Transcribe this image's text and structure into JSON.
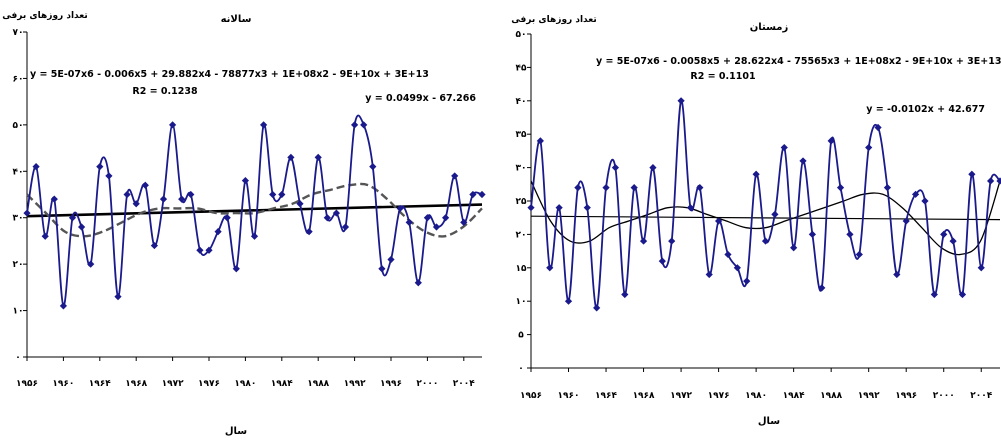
{
  "chart_data": [
    {
      "type": "line",
      "title": "سالانه",
      "ylabel": "تعداد روزهای برفی",
      "xlabel": "سال",
      "ylim": [
        0,
        70
      ],
      "xlim": [
        1956,
        2006
      ],
      "yticks": [
        0,
        10,
        20,
        30,
        40,
        50,
        60,
        70
      ],
      "ytick_labels": [
        "۰",
        "۱۰",
        "۲۰",
        "۳۰",
        "۴۰",
        "۵۰",
        "۶۰",
        "۷۰"
      ],
      "xticks": [
        1956,
        1960,
        1964,
        1968,
        1972,
        1976,
        1980,
        1984,
        1988,
        1992,
        1996,
        2000,
        2004
      ],
      "xtick_labels": [
        "۱۹۵۶",
        "۱۹۶۰",
        "۱۹۶۴",
        "۱۹۶۸",
        "۱۹۷۲",
        "۱۹۷۶",
        "۱۹۸۰",
        "۱۹۸۴",
        "۱۹۸۸",
        "۱۹۹۲",
        "۱۹۹۶",
        "۲۰۰۰",
        "۲۰۰۴"
      ],
      "grid": false,
      "series": [
        {
          "x": [
            1956,
            1957,
            1958,
            1959,
            1960,
            1961,
            1962,
            1963,
            1964,
            1965,
            1966,
            1967,
            1968,
            1969,
            1970,
            1971,
            1972,
            1973,
            1974,
            1975,
            1976,
            1977,
            1978,
            1979,
            1980,
            1981,
            1982,
            1983,
            1984,
            1985,
            1986,
            1987,
            1988,
            1989,
            1990,
            1991,
            1992,
            1993,
            1994,
            1995,
            1996,
            1997,
            1998,
            1999,
            2000,
            2001,
            2002,
            2003,
            2004,
            2005,
            2006
          ],
          "y": [
            31,
            41,
            26,
            34,
            11,
            30,
            28,
            20,
            41,
            39,
            13,
            35,
            33,
            37,
            24,
            34,
            50,
            34,
            35,
            23,
            23,
            27,
            30,
            19,
            38,
            26,
            50,
            35,
            35,
            43,
            33,
            27,
            43,
            30,
            31,
            28,
            50,
            50,
            41,
            19,
            21,
            32,
            29,
            16,
            30,
            28,
            30,
            39,
            29,
            35,
            35
          ]
        }
      ],
      "trendlines": [
        {
          "type": "linear",
          "equation": "y = 0.0499x - 67.266",
          "style": "solid",
          "color": "#000000"
        },
        {
          "type": "polynomial",
          "equation": "y = 5E-07x6 - 0.006x5 + 29.882x4 - 78877x3 + 1E+08x2 - 9E+10x + 3E+13",
          "r2": "R2 = 0.1238",
          "style": "dashed",
          "color": "#555555",
          "y": [
            35,
            31,
            27,
            26,
            27,
            29,
            31,
            32,
            32,
            32,
            31,
            31,
            31,
            32,
            33,
            35,
            36,
            37,
            37,
            34,
            30,
            27,
            26,
            28,
            32
          ]
        }
      ],
      "colors": {
        "series": "#1a1a8c",
        "markers": "#1a1a8c"
      }
    },
    {
      "type": "line",
      "title": "زمستان",
      "ylabel": "تعداد روزهای برفی",
      "xlabel": "سال",
      "ylim": [
        0,
        50
      ],
      "xlim": [
        1956,
        2006
      ],
      "yticks": [
        0,
        5,
        10,
        15,
        20,
        25,
        30,
        35,
        40,
        45,
        50
      ],
      "ytick_labels": [
        "۰",
        "۵",
        "۱۰",
        "۱۵",
        "۲۰",
        "۲۵",
        "۳۰",
        "۳۵",
        "۴۰",
        "۴۵",
        "۵۰"
      ],
      "xticks": [
        1956,
        1960,
        1964,
        1968,
        1972,
        1976,
        1980,
        1984,
        1988,
        1992,
        1996,
        2000,
        2004
      ],
      "xtick_labels": [
        "۱۹۵۶",
        "۱۹۶۰",
        "۱۹۶۴",
        "۱۹۶۸",
        "۱۹۷۲",
        "۱۹۷۶",
        "۱۹۸۰",
        "۱۹۸۴",
        "۱۹۸۸",
        "۱۹۹۲",
        "۱۹۹۶",
        "۲۰۰۰",
        "۲۰۰۴"
      ],
      "grid": false,
      "series": [
        {
          "x": [
            1956,
            1957,
            1958,
            1959,
            1960,
            1961,
            1962,
            1963,
            1964,
            1965,
            1966,
            1967,
            1968,
            1969,
            1970,
            1971,
            1972,
            1973,
            1974,
            1975,
            1976,
            1977,
            1978,
            1979,
            1980,
            1981,
            1982,
            1983,
            1984,
            1985,
            1986,
            1987,
            1988,
            1989,
            1990,
            1991,
            1992,
            1993,
            1994,
            1995,
            1996,
            1997,
            1998,
            1999,
            2000,
            2001,
            2002,
            2003,
            2004,
            2005,
            2006
          ],
          "y": [
            24,
            34,
            15,
            24,
            10,
            27,
            24,
            9,
            27,
            30,
            11,
            27,
            19,
            30,
            16,
            19,
            40,
            24,
            27,
            14,
            22,
            17,
            15,
            13,
            29,
            19,
            23,
            33,
            18,
            31,
            20,
            12,
            34,
            27,
            20,
            17,
            33,
            36,
            27,
            14,
            22,
            26,
            25,
            11,
            20,
            19,
            11,
            29,
            15,
            28,
            28
          ]
        }
      ],
      "trendlines": [
        {
          "type": "linear",
          "equation": "y = -0.0102x + 42.677",
          "style": "solid",
          "color": "#000000"
        },
        {
          "type": "polynomial",
          "equation": "y = 5E-07x6 - 0.0058x5 + 28.622x4 - 75565x3 + 1E+08x2 - 9E+10x + 3E+13",
          "r2": "R2 = 0.1101",
          "style": "solid",
          "color": "#000000",
          "y": [
            28,
            22,
            19,
            19,
            21,
            22,
            23,
            24,
            24,
            23,
            22,
            21,
            21,
            22,
            23,
            24,
            25,
            26,
            26,
            24,
            21,
            18,
            17,
            19,
            28
          ]
        }
      ],
      "colors": {
        "series": "#1a1a8c",
        "markers": "#1a1a8c"
      }
    }
  ]
}
